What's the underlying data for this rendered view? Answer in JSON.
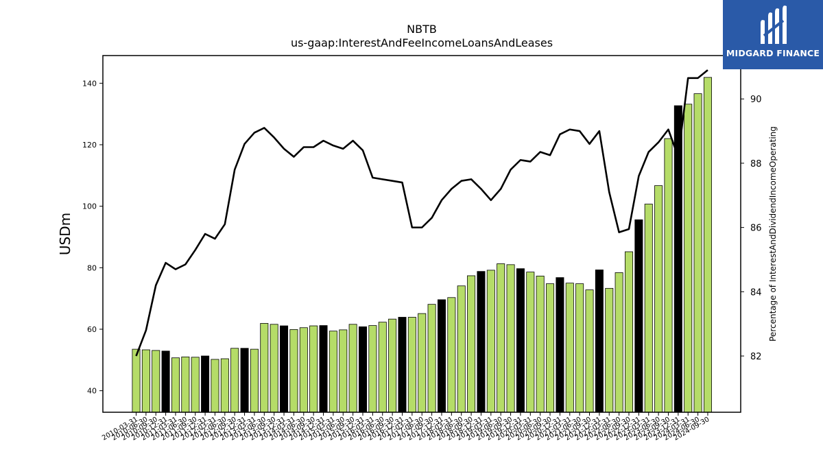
{
  "chart_data": {
    "type": "bar",
    "title": "NBTB",
    "subtitle": "us-gaap:InterestAndFeeIncomeLoansAndLeases",
    "ylabel": "USDm",
    "y2label": "Percentage of InterestAndDividendIncomeOperating",
    "ylim": [
      33,
      149
    ],
    "y2lim": [
      80.25,
      91.35
    ],
    "yticks": [
      40,
      60,
      80,
      100,
      120,
      140
    ],
    "y2ticks": [
      82,
      84,
      86,
      88,
      90
    ],
    "grid": false,
    "legend": "none",
    "colors": {
      "bar": "#b5dc68",
      "bar_q4": "#000000",
      "line": "#000000"
    },
    "categories": [
      "2010-03-31",
      "2010-06-30",
      "2010-09-30",
      "2010-12-31",
      "2011-03-31",
      "2011-06-30",
      "2011-09-30",
      "2011-12-31",
      "2012-03-31",
      "2012-06-30",
      "2012-09-30",
      "2012-12-31",
      "2013-03-31",
      "2013-06-30",
      "2013-09-30",
      "2013-12-31",
      "2014-03-31",
      "2014-06-30",
      "2014-09-30",
      "2014-12-31",
      "2015-03-31",
      "2015-06-30",
      "2015-09-30",
      "2015-12-31",
      "2016-03-31",
      "2016-06-30",
      "2016-09-30",
      "2016-12-31",
      "2017-03-31",
      "2017-06-30",
      "2017-09-30",
      "2017-12-31",
      "2018-03-31",
      "2018-06-30",
      "2018-09-30",
      "2018-12-31",
      "2019-03-31",
      "2019-06-30",
      "2019-09-30",
      "2019-12-31",
      "2020-03-31",
      "2020-06-30",
      "2020-09-30",
      "2020-12-31",
      "2021-03-31",
      "2021-06-30",
      "2021-09-30",
      "2021-12-31",
      "2022-03-31",
      "2022-06-30",
      "2022-09-30",
      "2022-12-31",
      "2023-03-31",
      "2023-06-30",
      "2023-09-30",
      "2023-12-31",
      "2024-03-31",
      "2024-06-30",
      "2024-09-30"
    ],
    "series": [
      {
        "type": "bar",
        "axis": "left",
        "values": [
          53.5,
          53.3,
          53.1,
          52.9,
          50.7,
          51.0,
          50.9,
          51.3,
          50.2,
          50.4,
          53.8,
          53.8,
          53.5,
          61.9,
          61.6,
          61.1,
          59.9,
          60.5,
          61.1,
          61.2,
          59.4,
          59.8,
          61.6,
          60.8,
          61.2,
          62.3,
          63.3,
          63.9,
          63.9,
          65.1,
          68.1,
          69.6,
          70.3,
          74.1,
          77.4,
          78.8,
          79.2,
          81.3,
          81.0,
          79.7,
          78.6,
          77.3,
          74.8,
          76.8,
          75.0,
          74.8,
          72.8,
          79.3,
          73.3,
          78.4,
          85.2,
          95.6,
          100.7,
          106.7,
          122.0,
          132.7,
          133.2,
          136.6,
          141.9
        ]
      },
      {
        "type": "line",
        "axis": "right",
        "values": [
          82.0,
          82.8,
          84.2,
          84.9,
          84.7,
          84.85,
          85.3,
          85.8,
          85.65,
          86.1,
          87.8,
          88.6,
          88.95,
          89.1,
          88.8,
          88.45,
          88.2,
          88.5,
          88.5,
          88.7,
          88.55,
          88.45,
          88.7,
          88.4,
          87.55,
          87.5,
          87.45,
          87.4,
          86.0,
          86.0,
          86.3,
          86.85,
          87.2,
          87.45,
          87.5,
          87.2,
          86.85,
          87.2,
          87.8,
          88.1,
          88.05,
          88.35,
          88.25,
          88.9,
          89.05,
          89.0,
          88.6,
          89.0,
          87.1,
          85.85,
          85.95,
          87.6,
          88.35,
          88.65,
          89.05,
          88.2,
          90.65,
          90.65,
          90.9
        ]
      }
    ]
  },
  "logo": {
    "text": "MIDGARD FINANCE"
  }
}
